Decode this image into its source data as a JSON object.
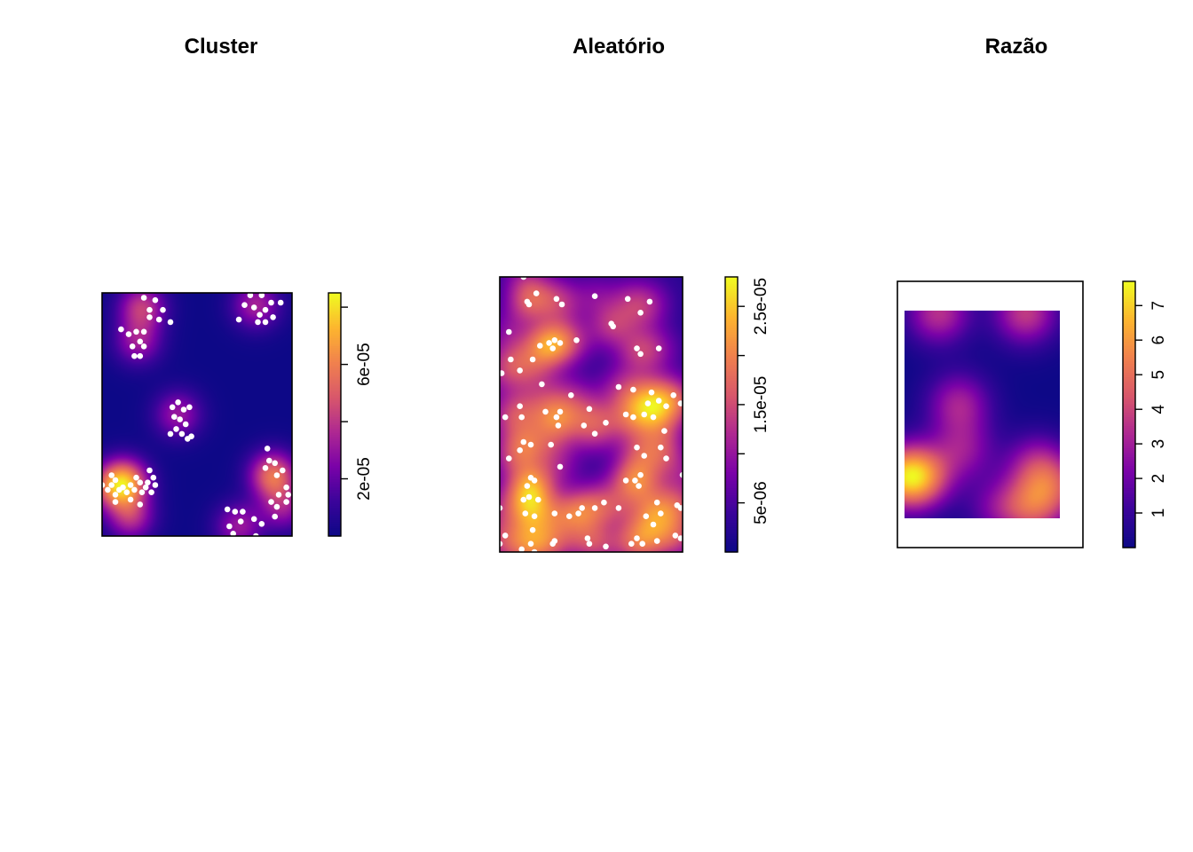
{
  "chart_data": [
    {
      "type": "heatmap",
      "title": "Cluster",
      "colormap": [
        "#0d0887",
        "#3b049a",
        "#7a02a8",
        "#ae2892",
        "#d8576b",
        "#f0804e",
        "#fdb42f",
        "#f0f921"
      ],
      "zlim": [
        0,
        8.5e-05
      ],
      "legend_ticks": [
        {
          "value": 2e-05,
          "label": "2e-05"
        },
        {
          "value": 4e-05,
          "label": ""
        },
        {
          "value": 6e-05,
          "label": "6e-05"
        },
        {
          "value": 8e-05,
          "label": ""
        }
      ],
      "x": [
        0,
        1
      ],
      "y": [
        0,
        1
      ],
      "centers": [
        {
          "x": 0.15,
          "y": 0.08,
          "w": 0.55
        },
        {
          "x": 0.21,
          "y": 0.94,
          "w": 0.6
        },
        {
          "x": 0.19,
          "y": 0.8,
          "w": 0.45
        },
        {
          "x": 0.81,
          "y": 0.95,
          "w": 0.5
        },
        {
          "x": 0.4,
          "y": 0.5,
          "w": 0.45
        },
        {
          "x": 0.12,
          "y": 0.22,
          "w": 1.0
        },
        {
          "x": 0.04,
          "y": 0.2,
          "w": 0.45
        },
        {
          "x": 0.9,
          "y": 0.25,
          "w": 0.85
        },
        {
          "x": 0.95,
          "y": 0.12,
          "w": 0.45
        },
        {
          "x": 0.72,
          "y": 0.04,
          "w": 0.45
        }
      ],
      "points": [
        [
          0.22,
          0.98
        ],
        [
          0.28,
          0.97
        ],
        [
          0.25,
          0.93
        ],
        [
          0.32,
          0.93
        ],
        [
          0.3,
          0.89
        ],
        [
          0.25,
          0.9
        ],
        [
          0.36,
          0.88
        ],
        [
          0.22,
          0.84
        ],
        [
          0.1,
          0.85
        ],
        [
          0.14,
          0.83
        ],
        [
          0.18,
          0.84
        ],
        [
          0.2,
          0.8
        ],
        [
          0.16,
          0.78
        ],
        [
          0.22,
          0.78
        ],
        [
          0.17,
          0.74
        ],
        [
          0.2,
          0.74
        ],
        [
          0.78,
          0.99
        ],
        [
          0.84,
          0.99
        ],
        [
          0.75,
          0.95
        ],
        [
          0.8,
          0.94
        ],
        [
          0.86,
          0.93
        ],
        [
          0.89,
          0.96
        ],
        [
          0.83,
          0.91
        ],
        [
          0.9,
          0.9
        ],
        [
          0.94,
          0.96
        ],
        [
          0.72,
          0.89
        ],
        [
          0.86,
          0.88
        ],
        [
          0.82,
          0.88
        ],
        [
          0.4,
          0.55
        ],
        [
          0.37,
          0.53
        ],
        [
          0.43,
          0.52
        ],
        [
          0.46,
          0.53
        ],
        [
          0.38,
          0.49
        ],
        [
          0.41,
          0.48
        ],
        [
          0.44,
          0.46
        ],
        [
          0.39,
          0.44
        ],
        [
          0.36,
          0.42
        ],
        [
          0.42,
          0.42
        ],
        [
          0.47,
          0.41
        ],
        [
          0.45,
          0.4
        ],
        [
          0.0,
          0.21
        ],
        [
          0.05,
          0.25
        ],
        [
          0.07,
          0.23
        ],
        [
          0.03,
          0.19
        ],
        [
          0.07,
          0.17
        ],
        [
          0.11,
          0.2
        ],
        [
          0.15,
          0.21
        ],
        [
          0.18,
          0.24
        ],
        [
          0.2,
          0.22
        ],
        [
          0.24,
          0.22
        ],
        [
          0.21,
          0.18
        ],
        [
          0.15,
          0.15
        ],
        [
          0.17,
          0.19
        ],
        [
          0.13,
          0.18
        ],
        [
          0.23,
          0.2
        ],
        [
          0.25,
          0.27
        ],
        [
          0.27,
          0.24
        ],
        [
          0.28,
          0.21
        ],
        [
          0.07,
          0.14
        ],
        [
          0.2,
          0.13
        ],
        [
          0.26,
          0.18
        ],
        [
          0.09,
          0.19
        ],
        [
          0.05,
          0.21
        ],
        [
          0.87,
          0.36
        ],
        [
          0.88,
          0.31
        ],
        [
          0.86,
          0.28
        ],
        [
          0.91,
          0.3
        ],
        [
          0.95,
          0.27
        ],
        [
          0.92,
          0.25
        ],
        [
          0.97,
          0.2
        ],
        [
          0.93,
          0.17
        ],
        [
          0.98,
          0.17
        ],
        [
          0.89,
          0.14
        ],
        [
          0.92,
          0.12
        ],
        [
          0.97,
          0.14
        ],
        [
          0.91,
          0.08
        ],
        [
          0.66,
          0.11
        ],
        [
          0.7,
          0.1
        ],
        [
          0.74,
          0.1
        ],
        [
          0.73,
          0.06
        ],
        [
          0.8,
          0.07
        ],
        [
          0.84,
          0.05
        ],
        [
          0.67,
          0.04
        ],
        [
          0.69,
          0.01
        ],
        [
          0.81,
          0.0
        ]
      ]
    },
    {
      "type": "heatmap",
      "title": "Aleatório",
      "colormap": [
        "#0d0887",
        "#3b049a",
        "#7a02a8",
        "#ae2892",
        "#d8576b",
        "#f0804e",
        "#fdb42f",
        "#f0f921"
      ],
      "zlim": [
        0,
        2.8e-05
      ],
      "legend_ticks": [
        {
          "value": 5e-06,
          "label": "5e-06"
        },
        {
          "value": 1e-05,
          "label": ""
        },
        {
          "value": 1.5e-05,
          "label": "1.5e-05"
        },
        {
          "value": 2e-05,
          "label": ""
        },
        {
          "value": 2.5e-05,
          "label": "2.5e-05"
        }
      ],
      "x": [
        0,
        1
      ],
      "y": [
        0,
        1
      ],
      "points": [
        [
          0.13,
          1.0
        ],
        [
          0.2,
          0.94
        ],
        [
          0.31,
          0.92
        ],
        [
          0.34,
          0.9
        ],
        [
          0.15,
          0.91
        ],
        [
          0.16,
          0.9
        ],
        [
          0.52,
          0.93
        ],
        [
          0.7,
          0.92
        ],
        [
          0.82,
          0.91
        ],
        [
          0.77,
          0.87
        ],
        [
          0.61,
          0.83
        ],
        [
          0.62,
          0.82
        ],
        [
          0.05,
          0.8
        ],
        [
          0.22,
          0.75
        ],
        [
          0.27,
          0.76
        ],
        [
          0.3,
          0.77
        ],
        [
          0.33,
          0.76
        ],
        [
          0.29,
          0.74
        ],
        [
          0.42,
          0.77
        ],
        [
          0.75,
          0.74
        ],
        [
          0.77,
          0.72
        ],
        [
          0.87,
          0.74
        ],
        [
          0.06,
          0.7
        ],
        [
          0.18,
          0.7
        ],
        [
          0.11,
          0.66
        ],
        [
          0.01,
          0.65
        ],
        [
          0.23,
          0.61
        ],
        [
          0.39,
          0.57
        ],
        [
          0.65,
          0.6
        ],
        [
          0.73,
          0.59
        ],
        [
          0.83,
          0.58
        ],
        [
          0.95,
          0.57
        ],
        [
          0.99,
          0.54
        ],
        [
          0.81,
          0.54
        ],
        [
          0.87,
          0.55
        ],
        [
          0.91,
          0.53
        ],
        [
          0.73,
          0.49
        ],
        [
          0.69,
          0.5
        ],
        [
          0.79,
          0.5
        ],
        [
          0.84,
          0.49
        ],
        [
          0.11,
          0.53
        ],
        [
          0.25,
          0.51
        ],
        [
          0.31,
          0.49
        ],
        [
          0.33,
          0.51
        ],
        [
          0.49,
          0.52
        ],
        [
          0.03,
          0.49
        ],
        [
          0.12,
          0.49
        ],
        [
          0.46,
          0.46
        ],
        [
          0.32,
          0.46
        ],
        [
          0.58,
          0.47
        ],
        [
          0.52,
          0.43
        ],
        [
          0.9,
          0.44
        ],
        [
          0.13,
          0.4
        ],
        [
          0.17,
          0.39
        ],
        [
          0.28,
          0.39
        ],
        [
          0.11,
          0.37
        ],
        [
          0.05,
          0.34
        ],
        [
          0.75,
          0.38
        ],
        [
          0.88,
          0.38
        ],
        [
          0.79,
          0.35
        ],
        [
          0.33,
          0.31
        ],
        [
          0.91,
          0.34
        ],
        [
          0.17,
          0.27
        ],
        [
          0.19,
          0.26
        ],
        [
          0.15,
          0.24
        ],
        [
          0.16,
          0.2
        ],
        [
          0.13,
          0.19
        ],
        [
          0.21,
          0.19
        ],
        [
          0.74,
          0.26
        ],
        [
          0.77,
          0.28
        ],
        [
          0.69,
          0.26
        ],
        [
          0.57,
          0.18
        ],
        [
          0.76,
          0.24
        ],
        [
          0.86,
          0.18
        ],
        [
          0.52,
          0.16
        ],
        [
          0.45,
          0.16
        ],
        [
          0.38,
          0.13
        ],
        [
          0.14,
          0.14
        ],
        [
          0.19,
          0.13
        ],
        [
          0.3,
          0.14
        ],
        [
          0.43,
          0.14
        ],
        [
          0.88,
          0.14
        ],
        [
          0.8,
          0.13
        ],
        [
          0.65,
          0.16
        ],
        [
          0.84,
          0.1
        ],
        [
          0.97,
          0.17
        ],
        [
          0.99,
          0.16
        ],
        [
          0.0,
          0.16
        ],
        [
          0.18,
          0.08
        ],
        [
          0.3,
          0.04
        ],
        [
          0.48,
          0.05
        ],
        [
          0.58,
          0.02
        ],
        [
          0.49,
          0.03
        ],
        [
          0.29,
          0.03
        ],
        [
          0.75,
          0.05
        ],
        [
          0.72,
          0.03
        ],
        [
          0.78,
          0.03
        ],
        [
          0.03,
          0.06
        ],
        [
          0.17,
          0.03
        ],
        [
          0.12,
          0.01
        ],
        [
          0.19,
          0.0
        ],
        [
          0.86,
          0.04
        ],
        [
          0.96,
          0.06
        ],
        [
          0.99,
          0.05
        ],
        [
          0.0,
          0.03
        ],
        [
          1.0,
          0.28
        ]
      ]
    },
    {
      "type": "heatmap",
      "title": "Razão",
      "colormap": [
        "#0d0887",
        "#3b049a",
        "#7a02a8",
        "#ae2892",
        "#d8576b",
        "#f0804e",
        "#fdb42f",
        "#f0f921"
      ],
      "zlim": [
        0,
        7.7
      ],
      "legend_ticks": [
        {
          "value": 1,
          "label": "1"
        },
        {
          "value": 2,
          "label": "2"
        },
        {
          "value": 3,
          "label": "3"
        },
        {
          "value": 4,
          "label": "4"
        },
        {
          "value": 5,
          "label": "5"
        },
        {
          "value": 6,
          "label": "6"
        },
        {
          "value": 7,
          "label": "7"
        }
      ],
      "x": [
        0,
        1
      ],
      "y": [
        0,
        1
      ],
      "centers": [
        {
          "x": 0.0,
          "y": 0.2,
          "w": 1.0
        },
        {
          "x": 0.12,
          "y": 0.2,
          "w": 0.7
        },
        {
          "x": 0.35,
          "y": 0.55,
          "w": 0.55
        },
        {
          "x": 0.38,
          "y": 0.33,
          "w": 0.45
        },
        {
          "x": 0.22,
          "y": 0.99,
          "w": 0.65
        },
        {
          "x": 0.78,
          "y": 0.99,
          "w": 0.7
        },
        {
          "x": 0.82,
          "y": 0.05,
          "w": 0.7
        },
        {
          "x": 0.85,
          "y": 0.25,
          "w": 0.55
        },
        {
          "x": 0.98,
          "y": 0.15,
          "w": 0.5
        },
        {
          "x": 0.6,
          "y": 0.05,
          "w": 0.35
        }
      ]
    }
  ]
}
